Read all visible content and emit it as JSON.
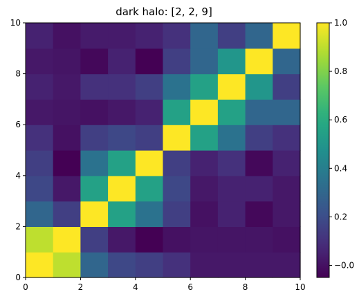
{
  "chart_data": {
    "type": "heatmap",
    "title": "dark halo: [2, 2, 9]",
    "xlabel": "",
    "ylabel": "",
    "xlim": [
      0,
      10
    ],
    "ylim": [
      0,
      10
    ],
    "x_ticks": [
      0,
      2,
      4,
      6,
      8,
      10
    ],
    "y_ticks": [
      0,
      2,
      4,
      6,
      8,
      10
    ],
    "grid": false,
    "colormap": "viridis",
    "color_range": [
      -0.05,
      1.0
    ],
    "colorbar_ticks": [
      -0.0,
      0.2,
      0.4,
      0.6,
      0.8,
      1.0
    ],
    "colorbar_tick_labels": [
      "−0.0",
      "0.2",
      "0.4",
      "0.6",
      "0.8",
      "1.0"
    ],
    "rows_from_bottom": [
      [
        1.0,
        0.9,
        0.3,
        0.18,
        0.15,
        0.1,
        0.02,
        0.02,
        0.02,
        0.02
      ],
      [
        0.9,
        1.0,
        0.15,
        0.02,
        -0.05,
        0.0,
        0.01,
        0.01,
        0.01,
        0.0
      ],
      [
        0.3,
        0.15,
        1.0,
        0.55,
        0.35,
        0.15,
        0.0,
        0.05,
        -0.03,
        0.02
      ],
      [
        0.18,
        0.02,
        0.55,
        1.0,
        0.55,
        0.18,
        0.02,
        0.05,
        0.05,
        0.02
      ],
      [
        0.15,
        -0.05,
        0.35,
        0.55,
        1.0,
        0.15,
        0.05,
        0.1,
        -0.03,
        0.05
      ],
      [
        0.1,
        0.0,
        0.15,
        0.18,
        0.15,
        1.0,
        0.55,
        0.35,
        0.15,
        0.1
      ],
      [
        0.02,
        0.01,
        0.0,
        0.02,
        0.05,
        0.55,
        1.0,
        0.55,
        0.3,
        0.3
      ],
      [
        0.05,
        0.02,
        0.1,
        0.1,
        0.15,
        0.35,
        0.55,
        1.0,
        0.5,
        0.15
      ],
      [
        0.02,
        0.01,
        -0.03,
        0.05,
        -0.05,
        0.15,
        0.3,
        0.5,
        1.0,
        0.3
      ],
      [
        0.05,
        0.0,
        0.03,
        0.03,
        0.05,
        0.1,
        0.3,
        0.15,
        0.3,
        1.0
      ]
    ]
  }
}
